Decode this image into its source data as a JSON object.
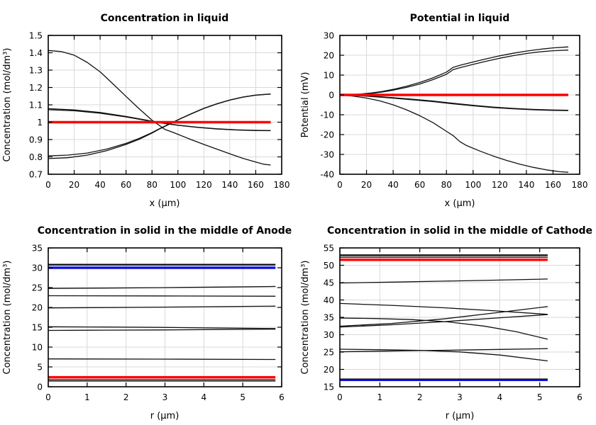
{
  "page": {
    "background": "#ffffff"
  },
  "colors": {
    "black": "#111111",
    "red": "#ff0000",
    "blue": "#1010dd",
    "grid": "#d9d9d9",
    "frame": "#000000",
    "text": "#000000"
  },
  "chart_data": [
    {
      "id": "concentration-in-liquid",
      "type": "line",
      "title": "Concentration in liquid",
      "xlabel": "x (µm)",
      "ylabel": "Concentration (mol/dm³)",
      "xlim": [
        0,
        180
      ],
      "ylim": [
        0.7,
        1.5
      ],
      "xticks": [
        0,
        20,
        40,
        60,
        80,
        100,
        120,
        140,
        160,
        180
      ],
      "yticks": [
        0.7,
        0.8,
        0.9,
        1,
        1.1,
        1.2,
        1.3,
        1.4,
        1.5
      ],
      "xtick_labels": [
        "0",
        "20",
        "40",
        "60",
        "80",
        "100",
        "120",
        "140",
        "160",
        "180"
      ],
      "ytick_labels": [
        "0.7",
        "0.8",
        "0.9",
        "1",
        "1.1",
        "1.2",
        "1.3",
        "1.4",
        "1.5"
      ],
      "grid": true,
      "legend": "none",
      "series": [
        {
          "color": "black",
          "width": 1.3,
          "x": [
            0,
            10,
            20,
            30,
            40,
            50,
            60,
            70,
            80,
            85,
            90,
            95,
            100,
            110,
            120,
            130,
            140,
            150,
            160,
            166,
            171.5
          ],
          "y": [
            1.413,
            1.407,
            1.386,
            1.345,
            1.29,
            1.22,
            1.148,
            1.078,
            1.012,
            0.985,
            0.958,
            0.945,
            0.93,
            0.9,
            0.872,
            0.845,
            0.818,
            0.792,
            0.77,
            0.758,
            0.753
          ]
        },
        {
          "color": "black",
          "width": 1.3,
          "x": [
            0,
            20,
            40,
            60,
            80,
            85,
            90,
            100,
            115,
            130,
            145,
            160,
            171.5
          ],
          "y": [
            1.072,
            1.066,
            1.052,
            1.03,
            1.004,
            0.998,
            0.992,
            0.982,
            0.97,
            0.961,
            0.955,
            0.952,
            0.951
          ]
        },
        {
          "color": "black",
          "width": 1.3,
          "x": [
            0,
            20,
            40,
            60,
            80,
            85,
            90,
            100,
            115,
            130,
            145,
            160,
            171.5
          ],
          "y": [
            1.078,
            1.071,
            1.056,
            1.033,
            1.006,
            1.0,
            0.993,
            0.983,
            0.971,
            0.962,
            0.956,
            0.953,
            0.952
          ]
        },
        {
          "color": "black",
          "width": 1.3,
          "x": [
            0,
            15,
            30,
            45,
            60,
            70,
            80,
            85,
            90,
            100,
            110,
            120,
            130,
            140,
            150,
            160,
            171.5
          ],
          "y": [
            0.806,
            0.81,
            0.822,
            0.845,
            0.878,
            0.906,
            0.94,
            0.96,
            0.978,
            1.014,
            1.048,
            1.08,
            1.106,
            1.128,
            1.145,
            1.156,
            1.163
          ]
        },
        {
          "color": "black",
          "width": 1.3,
          "x": [
            0,
            15,
            30,
            45,
            60,
            70,
            80,
            85,
            90,
            100,
            110,
            120,
            130,
            140,
            150,
            160,
            171.5
          ],
          "y": [
            0.79,
            0.795,
            0.81,
            0.836,
            0.872,
            0.901,
            0.937,
            0.958,
            0.976,
            1.013,
            1.047,
            1.079,
            1.105,
            1.127,
            1.144,
            1.156,
            1.162
          ]
        },
        {
          "color": "red",
          "width": 3.5,
          "x": [
            0,
            171.5
          ],
          "y": [
            1,
            1
          ]
        }
      ]
    },
    {
      "id": "potential-in-liquid",
      "type": "line",
      "title": "Potential in liquid",
      "xlabel": "x (µm)",
      "ylabel": "Potential (mV)",
      "xlim": [
        0,
        180
      ],
      "ylim": [
        -40,
        30
      ],
      "xticks": [
        0,
        20,
        40,
        60,
        80,
        100,
        120,
        140,
        160,
        180
      ],
      "yticks": [
        -40,
        -30,
        -20,
        -10,
        0,
        10,
        20,
        30
      ],
      "xtick_labels": [
        "0",
        "20",
        "40",
        "60",
        "80",
        "100",
        "120",
        "140",
        "160",
        "180"
      ],
      "ytick_labels": [
        "-40",
        "-30",
        "-20",
        "-10",
        "0",
        "10",
        "20",
        "30"
      ],
      "grid": true,
      "legend": "none",
      "series": [
        {
          "color": "black",
          "width": 1.3,
          "x": [
            0,
            8,
            16,
            24,
            32,
            40,
            50,
            60,
            70,
            80,
            85,
            90,
            100,
            110,
            120,
            130,
            140,
            150,
            160,
            171.5
          ],
          "y": [
            0,
            0.15,
            0.5,
            1.0,
            1.8,
            2.8,
            4.4,
            6.3,
            8.6,
            11.5,
            13.9,
            14.9,
            16.6,
            18.2,
            19.7,
            21.0,
            22.1,
            23.0,
            23.7,
            24.2
          ]
        },
        {
          "color": "black",
          "width": 1.3,
          "x": [
            0,
            8,
            16,
            24,
            32,
            40,
            50,
            60,
            70,
            80,
            85,
            90,
            100,
            110,
            120,
            130,
            140,
            150,
            160,
            171.5
          ],
          "y": [
            0,
            0.1,
            0.4,
            0.8,
            1.5,
            2.4,
            3.8,
            5.5,
            7.7,
            10.4,
            12.7,
            13.7,
            15.4,
            17.0,
            18.5,
            19.8,
            20.9,
            21.7,
            22.3,
            22.6
          ]
        },
        {
          "color": "black",
          "width": 1.3,
          "x": [
            0,
            10,
            20,
            30,
            40,
            55,
            70,
            85,
            100,
            115,
            130,
            145,
            160,
            171.5
          ],
          "y": [
            0,
            -0.2,
            -0.5,
            -0.9,
            -1.4,
            -2.2,
            -3.1,
            -4.2,
            -5.2,
            -6.1,
            -6.8,
            -7.3,
            -7.6,
            -7.7
          ]
        },
        {
          "color": "black",
          "width": 1.3,
          "x": [
            0,
            10,
            20,
            30,
            40,
            55,
            70,
            85,
            100,
            115,
            130,
            145,
            160,
            171.5
          ],
          "y": [
            0,
            -0.3,
            -0.65,
            -1.1,
            -1.65,
            -2.5,
            -3.4,
            -4.5,
            -5.5,
            -6.35,
            -7.0,
            -7.5,
            -7.8,
            -7.9
          ]
        },
        {
          "color": "black",
          "width": 1.3,
          "x": [
            0,
            10,
            20,
            30,
            40,
            50,
            60,
            70,
            78,
            85,
            90,
            95,
            105,
            115,
            125,
            135,
            145,
            155,
            165,
            171.5
          ],
          "y": [
            0,
            -0.6,
            -1.6,
            -3.0,
            -5.0,
            -7.5,
            -10.5,
            -14,
            -17.5,
            -20.5,
            -23.5,
            -25.5,
            -28.3,
            -30.8,
            -33,
            -34.9,
            -36.5,
            -37.8,
            -38.7,
            -39
          ]
        },
        {
          "color": "red",
          "width": 3.5,
          "x": [
            0,
            171.5
          ],
          "y": [
            0,
            0
          ]
        }
      ]
    },
    {
      "id": "concentration-solid-anode",
      "type": "line",
      "title": "Concentration in solid in the middle of Anode",
      "xlabel": "r (µm)",
      "ylabel": "Concentration (mol/dm³)",
      "xlim": [
        0,
        6
      ],
      "ylim": [
        0,
        35
      ],
      "xticks": [
        0,
        1,
        2,
        3,
        4,
        5,
        6
      ],
      "yticks": [
        0,
        5,
        10,
        15,
        20,
        25,
        30,
        35
      ],
      "xtick_labels": [
        "0",
        "1",
        "2",
        "3",
        "4",
        "5",
        "6"
      ],
      "ytick_labels": [
        "0",
        "5",
        "10",
        "15",
        "20",
        "25",
        "30",
        "35"
      ],
      "grid": true,
      "legend": "none",
      "series": [
        {
          "color": "black",
          "width": 1.3,
          "x": [
            0,
            5.84
          ],
          "y": [
            30.85,
            30.85
          ]
        },
        {
          "color": "black",
          "width": 1.3,
          "x": [
            0,
            5.84
          ],
          "y": [
            30.68,
            30.68
          ]
        },
        {
          "color": "blue",
          "width": 3.5,
          "x": [
            0,
            5.84
          ],
          "y": [
            30.0,
            30.0
          ]
        },
        {
          "color": "black",
          "width": 1.3,
          "x": [
            0,
            1.45,
            2.9,
            4.35,
            5.84
          ],
          "y": [
            24.78,
            24.87,
            24.98,
            25.12,
            25.28
          ]
        },
        {
          "color": "black",
          "width": 1.3,
          "x": [
            0,
            2.9,
            5.84
          ],
          "y": [
            22.95,
            22.89,
            22.82
          ]
        },
        {
          "color": "black",
          "width": 1.3,
          "x": [
            0,
            1.45,
            2.9,
            4.35,
            5.84
          ],
          "y": [
            19.88,
            19.97,
            20.07,
            20.19,
            20.32
          ]
        },
        {
          "color": "black",
          "width": 1.3,
          "x": [
            0,
            1.45,
            2.9,
            4.35,
            5.84
          ],
          "y": [
            15.12,
            15.06,
            14.96,
            14.82,
            14.68
          ]
        },
        {
          "color": "black",
          "width": 1.3,
          "x": [
            0,
            1.45,
            2.9,
            4.35,
            5.84
          ],
          "y": [
            14.2,
            14.26,
            14.33,
            14.42,
            14.52
          ]
        },
        {
          "color": "black",
          "width": 1.3,
          "x": [
            0,
            2.9,
            5.84
          ],
          "y": [
            7.02,
            6.96,
            6.87
          ]
        },
        {
          "color": "red",
          "width": 3.5,
          "x": [
            0,
            5.84
          ],
          "y": [
            2.4,
            2.4
          ]
        },
        {
          "color": "black",
          "width": 1.3,
          "x": [
            0,
            5.84
          ],
          "y": [
            1.75,
            1.75
          ]
        },
        {
          "color": "black",
          "width": 1.3,
          "x": [
            0,
            5.84
          ],
          "y": [
            1.42,
            1.42
          ]
        }
      ]
    },
    {
      "id": "concentration-solid-cathode",
      "type": "line",
      "title": "Concentration in solid in the middle of Cathode",
      "xlabel": "r (µm)",
      "ylabel": "Concentration (mol/dm³)",
      "xlim": [
        0,
        6
      ],
      "ylim": [
        15,
        55
      ],
      "xticks": [
        0,
        1,
        2,
        3,
        4,
        5,
        6
      ],
      "yticks": [
        15,
        20,
        25,
        30,
        35,
        40,
        45,
        50,
        55
      ],
      "xtick_labels": [
        "0",
        "1",
        "2",
        "3",
        "4",
        "5",
        "6"
      ],
      "ytick_labels": [
        "15",
        "20",
        "25",
        "30",
        "35",
        "40",
        "45",
        "50",
        "55"
      ],
      "grid": true,
      "legend": "none",
      "series": [
        {
          "color": "black",
          "width": 1.3,
          "x": [
            0,
            5.2
          ],
          "y": [
            53.0,
            53.0
          ]
        },
        {
          "color": "black",
          "width": 1.3,
          "x": [
            0,
            5.2
          ],
          "y": [
            52.8,
            52.8
          ]
        },
        {
          "color": "black",
          "width": 1.3,
          "x": [
            0,
            5.2
          ],
          "y": [
            52.3,
            52.3
          ]
        },
        {
          "color": "red",
          "width": 3.5,
          "x": [
            0,
            5.2
          ],
          "y": [
            51.6,
            51.6
          ]
        },
        {
          "color": "black",
          "width": 1.3,
          "x": [
            0,
            1.3,
            2.6,
            3.9,
            5.2
          ],
          "y": [
            44.9,
            45.15,
            45.42,
            45.72,
            46.05
          ]
        },
        {
          "color": "black",
          "width": 1.3,
          "x": [
            0,
            1.3,
            2.6,
            3.9,
            5.2
          ],
          "y": [
            39.0,
            38.45,
            37.75,
            36.85,
            35.85
          ]
        },
        {
          "color": "black",
          "width": 1.3,
          "x": [
            0,
            0.9,
            1.8,
            2.7,
            3.6,
            4.4,
            5.2
          ],
          "y": [
            34.8,
            34.65,
            34.35,
            33.7,
            32.5,
            30.9,
            28.7
          ]
        },
        {
          "color": "black",
          "width": 1.3,
          "x": [
            0,
            1.3,
            2.6,
            3.9,
            5.2
          ],
          "y": [
            32.45,
            33.25,
            34.55,
            36.3,
            38.1
          ]
        },
        {
          "color": "black",
          "width": 1.3,
          "x": [
            0,
            1.3,
            2.6,
            3.9,
            5.2
          ],
          "y": [
            32.2,
            32.85,
            33.75,
            34.8,
            35.8
          ]
        },
        {
          "color": "black",
          "width": 1.3,
          "x": [
            0,
            1.0,
            2.0,
            3.0,
            4.0,
            5.2
          ],
          "y": [
            25.82,
            25.68,
            25.48,
            25.05,
            24.15,
            22.45
          ]
        },
        {
          "color": "black",
          "width": 1.3,
          "x": [
            0,
            1.0,
            2.0,
            3.0,
            4.0,
            5.2
          ],
          "y": [
            25.08,
            25.25,
            25.42,
            25.58,
            25.76,
            25.98
          ]
        },
        {
          "color": "blue",
          "width": 3.5,
          "x": [
            0,
            5.2
          ],
          "y": [
            17.0,
            17.0
          ]
        },
        {
          "color": "black",
          "width": 1.3,
          "x": [
            0,
            5.2
          ],
          "y": [
            17.25,
            17.25
          ]
        }
      ]
    }
  ]
}
